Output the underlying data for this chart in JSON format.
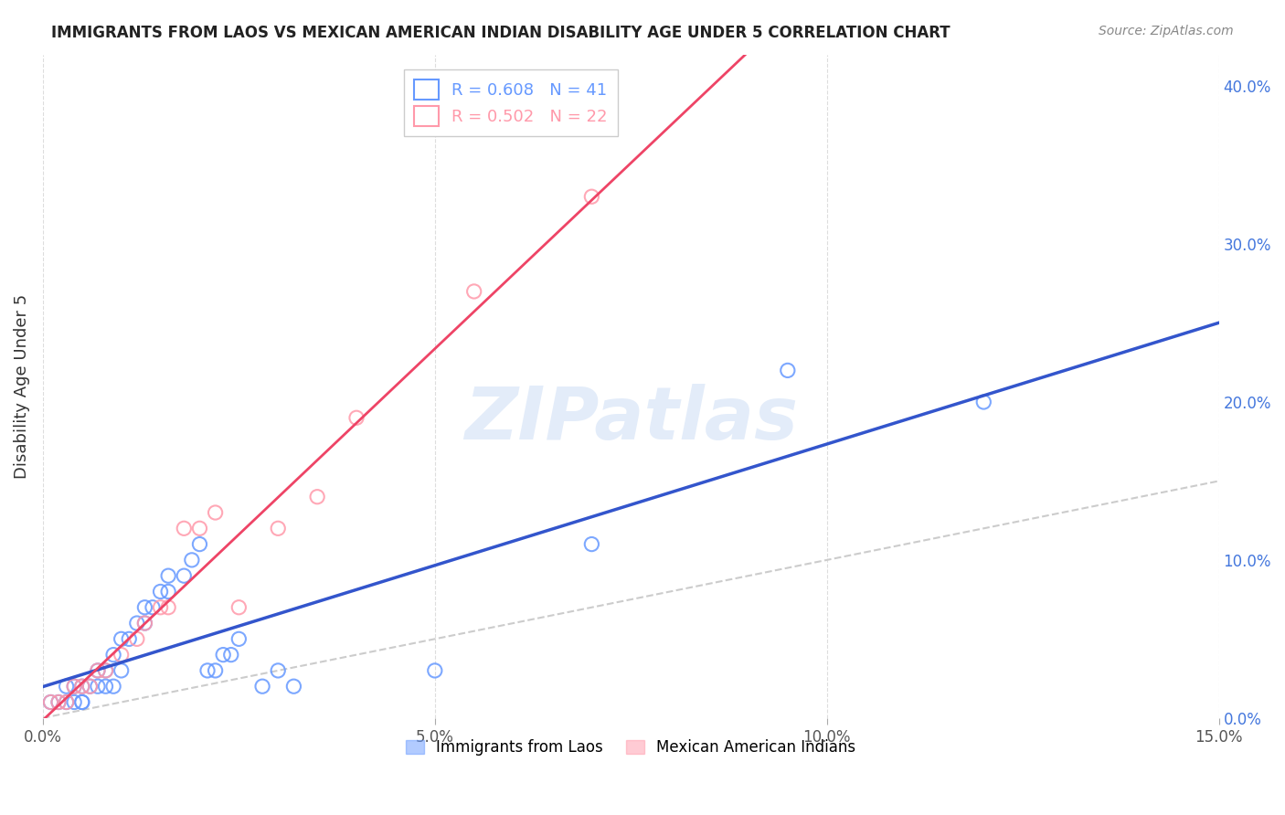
{
  "title": "IMMIGRANTS FROM LAOS VS MEXICAN AMERICAN INDIAN DISABILITY AGE UNDER 5 CORRELATION CHART",
  "source": "Source: ZipAtlas.com",
  "xlabel": "",
  "ylabel": "Disability Age Under 5",
  "xlim": [
    0.0,
    0.15
  ],
  "ylim": [
    0.0,
    0.42
  ],
  "xticks": [
    0.0,
    0.05,
    0.1,
    0.15
  ],
  "xtick_labels": [
    "0.0%",
    "5.0%",
    "10.0%",
    "15.0%"
  ],
  "ytick_labels_right": [
    "0.0%",
    "10.0%",
    "20.0%",
    "30.0%",
    "40.0%"
  ],
  "yticks_right": [
    0.0,
    0.1,
    0.2,
    0.3,
    0.4
  ],
  "R_laos": 0.608,
  "N_laos": 41,
  "R_mexican": 0.502,
  "N_mexican": 22,
  "color_laos": "#6699ff",
  "color_mexican": "#ff99aa",
  "color_laos_line": "#3355cc",
  "color_mexican_line": "#ee4466",
  "color_diagonal": "#cccccc",
  "watermark_zip": "ZIP",
  "watermark_atlas": "atlas",
  "laos_x": [
    0.001,
    0.002,
    0.003,
    0.003,
    0.004,
    0.004,
    0.005,
    0.005,
    0.005,
    0.006,
    0.007,
    0.007,
    0.008,
    0.008,
    0.009,
    0.009,
    0.01,
    0.01,
    0.011,
    0.012,
    0.013,
    0.013,
    0.014,
    0.015,
    0.016,
    0.016,
    0.018,
    0.019,
    0.02,
    0.021,
    0.022,
    0.023,
    0.024,
    0.025,
    0.028,
    0.03,
    0.032,
    0.05,
    0.07,
    0.095,
    0.12
  ],
  "laos_y": [
    0.01,
    0.01,
    0.01,
    0.02,
    0.01,
    0.02,
    0.01,
    0.02,
    0.01,
    0.02,
    0.02,
    0.03,
    0.02,
    0.03,
    0.02,
    0.04,
    0.03,
    0.05,
    0.05,
    0.06,
    0.06,
    0.07,
    0.07,
    0.08,
    0.08,
    0.09,
    0.09,
    0.1,
    0.11,
    0.03,
    0.03,
    0.04,
    0.04,
    0.05,
    0.02,
    0.03,
    0.02,
    0.03,
    0.11,
    0.22,
    0.2
  ],
  "mexican_x": [
    0.001,
    0.002,
    0.003,
    0.004,
    0.005,
    0.006,
    0.007,
    0.008,
    0.01,
    0.012,
    0.013,
    0.015,
    0.016,
    0.018,
    0.02,
    0.022,
    0.025,
    0.03,
    0.035,
    0.04,
    0.055,
    0.07
  ],
  "mexican_y": [
    0.01,
    0.01,
    0.01,
    0.02,
    0.02,
    0.02,
    0.03,
    0.03,
    0.04,
    0.05,
    0.06,
    0.07,
    0.07,
    0.12,
    0.12,
    0.13,
    0.07,
    0.12,
    0.14,
    0.19,
    0.27,
    0.33
  ],
  "legend_laos_label": "Immigrants from Laos",
  "legend_mexican_label": "Mexican American Indians"
}
